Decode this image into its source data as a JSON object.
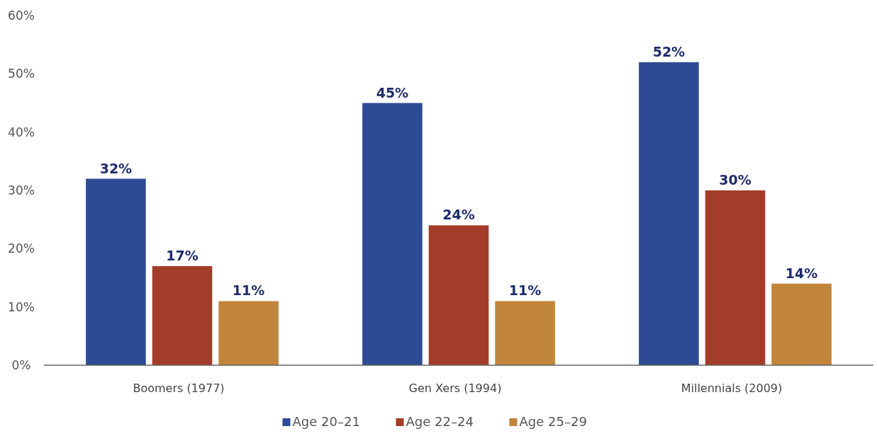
{
  "chart_data": {
    "type": "bar",
    "categories": [
      "Boomers (1977)",
      "Gen Xers (1994)",
      "Millennials (2009)"
    ],
    "series": [
      {
        "name": "Age 20–21",
        "color": "#2e4a94",
        "values": [
          32,
          45,
          52
        ],
        "value_labels": [
          "32%",
          "45%",
          "52%"
        ]
      },
      {
        "name": "Age 22–24",
        "color": "#a33c28",
        "values": [
          17,
          24,
          30
        ],
        "value_labels": [
          "17%",
          "24%",
          "30%"
        ]
      },
      {
        "name": "Age 25–29",
        "color": "#c2853c",
        "values": [
          11,
          11,
          14
        ],
        "value_labels": [
          "11%",
          "11%",
          "14%"
        ]
      }
    ],
    "ylim": [
      0,
      60
    ],
    "yticks": [
      {
        "value": 0,
        "label": "0%"
      },
      {
        "value": 10,
        "label": "10%"
      },
      {
        "value": 20,
        "label": "20%"
      },
      {
        "value": 30,
        "label": "30%"
      },
      {
        "value": 40,
        "label": "40%"
      },
      {
        "value": 50,
        "label": "50%"
      },
      {
        "value": 60,
        "label": "60%"
      }
    ],
    "grid": false,
    "legend": "bottom"
  }
}
